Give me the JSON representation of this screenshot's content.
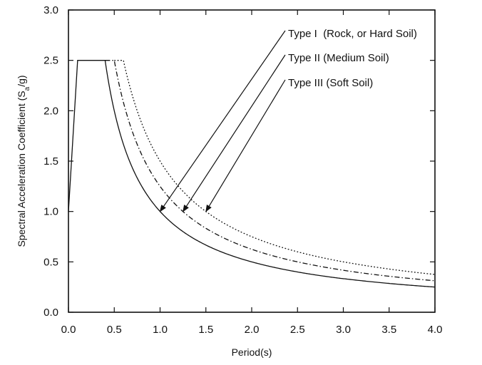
{
  "chart_data": {
    "type": "line",
    "title": "",
    "xlabel": "Period(s)",
    "ylabel": "Spectral Acceleration Coefficient (Sa/g)",
    "ylabel_parts": {
      "before": "Spectral Acceleration Coefficient (S",
      "sub": "a",
      "after": "/g)"
    },
    "xlim": [
      0,
      4.0
    ],
    "ylim": [
      0,
      3.0
    ],
    "x_ticks": [
      "0.0",
      "0.5",
      "1.0",
      "1.5",
      "2.0",
      "2.5",
      "3.0",
      "3.5",
      "4.0"
    ],
    "y_ticks": [
      "0.0",
      "0.5",
      "1.0",
      "1.5",
      "2.0",
      "2.5",
      "3.0"
    ],
    "grid": false,
    "legend_placement": "top-right, with leader arrows pointing to each curve",
    "series": [
      {
        "name": "Type I  (Rock, or Hard Soil)",
        "line_style": "solid",
        "description": "Sa/g: 1.0 at T=0, ramps to 2.5 at T=0.1; plateau 2.5 until T=0.4; then 1.0/T",
        "points": [
          [
            0,
            1.0
          ],
          [
            0.1,
            2.5
          ],
          [
            0.4,
            2.5
          ],
          [
            0.5,
            2.0
          ],
          [
            0.6,
            1.667
          ],
          [
            0.8,
            1.25
          ],
          [
            1.0,
            1.0
          ],
          [
            1.5,
            0.667
          ],
          [
            2.0,
            0.5
          ],
          [
            2.5,
            0.4
          ],
          [
            3.0,
            0.333
          ],
          [
            3.5,
            0.286
          ],
          [
            4.0,
            0.25
          ]
        ],
        "arrow_target": [
          1.0,
          1.0
        ]
      },
      {
        "name": "Type II (Medium Soil)",
        "line_style": "dash-dot",
        "description": "plateau 2.5 from T=0.4 to T=0.5, then 1.25/T",
        "points": [
          [
            0.4,
            2.5
          ],
          [
            0.5,
            2.5
          ],
          [
            0.6,
            2.083
          ],
          [
            0.8,
            1.563
          ],
          [
            1.0,
            1.25
          ],
          [
            1.5,
            0.833
          ],
          [
            2.0,
            0.625
          ],
          [
            2.5,
            0.5
          ],
          [
            3.0,
            0.417
          ],
          [
            3.5,
            0.357
          ],
          [
            4.0,
            0.3125
          ]
        ],
        "arrow_target": [
          1.25,
          1.0
        ]
      },
      {
        "name": "Type III (Soft Soil)",
        "line_style": "dotted",
        "description": "plateau 2.5 from T=0.5 to T=0.6, then 1.5/T",
        "points": [
          [
            0.5,
            2.5
          ],
          [
            0.6,
            2.5
          ],
          [
            0.8,
            1.875
          ],
          [
            1.0,
            1.5
          ],
          [
            1.5,
            1.0
          ],
          [
            2.0,
            0.75
          ],
          [
            2.5,
            0.6
          ],
          [
            3.0,
            0.5
          ],
          [
            3.5,
            0.429
          ],
          [
            4.0,
            0.375
          ]
        ],
        "arrow_target": [
          1.5,
          1.0
        ]
      }
    ]
  }
}
